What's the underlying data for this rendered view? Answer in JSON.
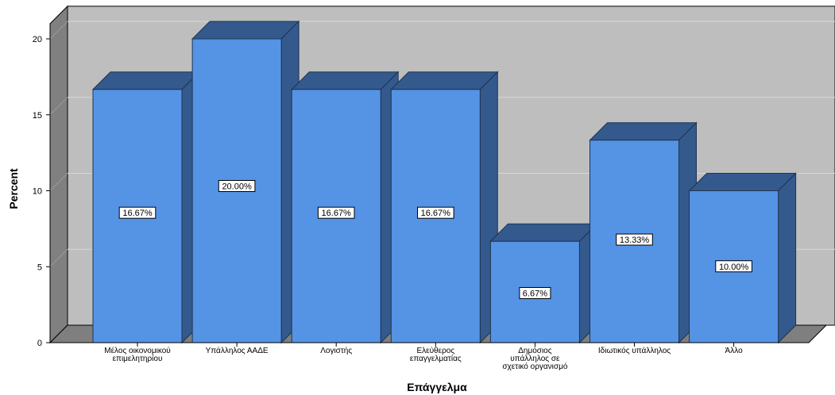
{
  "chart_data": {
    "type": "bar",
    "title": "",
    "xlabel": "Επάγγελμα",
    "ylabel": "Percent",
    "ylim": [
      0,
      21
    ],
    "yticks": [
      0,
      5,
      10,
      15,
      20
    ],
    "grid": true,
    "bar_color": "#5593E5",
    "bar_side_color": "#34598D",
    "bar_top_color": "#34598D",
    "back_wall_color": "#BEBEBE",
    "side_wall_color": "#808080",
    "floor_color": "#7F7F7F",
    "categories": [
      [
        "Μέλος οικονομικού",
        "επιμελητηρίου"
      ],
      [
        "Υπάλληλος ΑΑΔΕ"
      ],
      [
        "Λογιστής"
      ],
      [
        "Ελεύθερος",
        "επαγγελματίας"
      ],
      [
        "Δημόσιος",
        "υπάλληλος σε",
        "σχετικό οργανισμό"
      ],
      [
        "Ιδιωτικός υπάλληλος"
      ],
      [
        "Άλλο"
      ]
    ],
    "values": [
      16.67,
      20.0,
      16.67,
      16.67,
      6.67,
      13.33,
      10.0
    ],
    "data_labels": [
      "16.67%",
      "20.00%",
      "16.67%",
      "16.67%",
      "6.67%",
      "13.33%",
      "10.00%"
    ]
  }
}
